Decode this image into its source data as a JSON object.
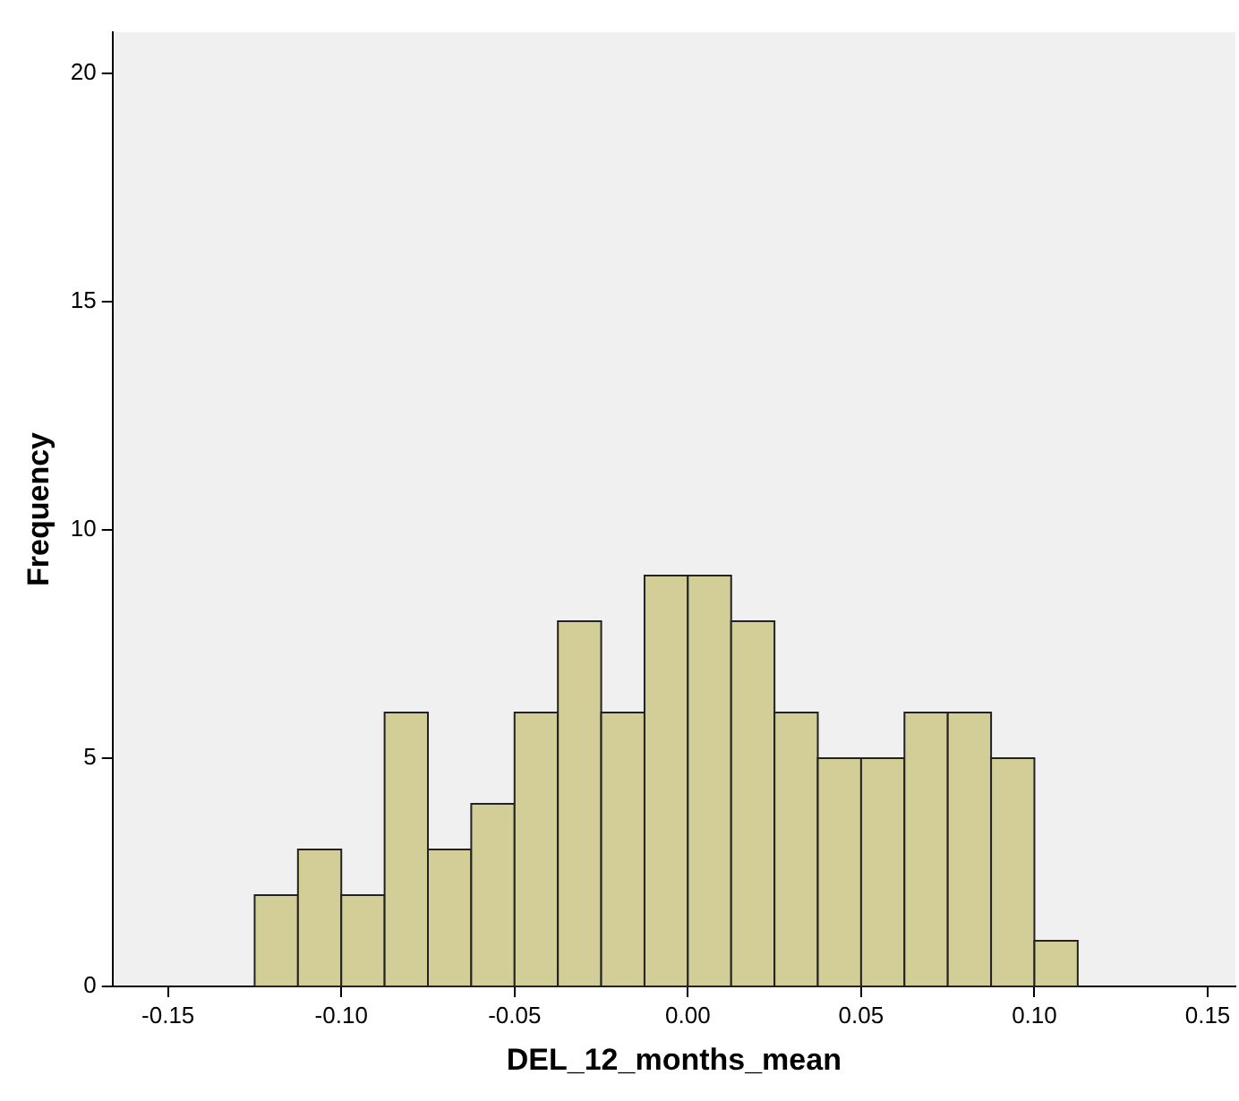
{
  "chart_data": {
    "type": "histogram",
    "xlabel": "DEL_12_months_mean",
    "ylabel": "Frequency",
    "bins": [
      -0.125,
      -0.1125,
      -0.1,
      -0.0875,
      -0.075,
      -0.0625,
      -0.05,
      -0.0375,
      -0.025,
      -0.0125,
      0,
      0.0125,
      0.025,
      0.0375,
      0.05,
      0.0625,
      0.075,
      0.0875,
      0.1,
      0.1125
    ],
    "values": [
      2,
      3,
      2,
      6,
      3,
      4,
      6,
      8,
      6,
      9,
      9,
      8,
      6,
      5,
      5,
      6,
      6,
      5,
      1
    ],
    "color": "#d3ce97",
    "xlim": [
      -0.166,
      0.158
    ],
    "xticks": [
      -0.15,
      {
        "value": -0.1,
        "label": "-0.10"
      },
      -0.05,
      {
        "value": 0,
        "label": "0.00"
      },
      0.05,
      {
        "value": 0.1,
        "label": "0.10"
      },
      0.15
    ],
    "ylim": [
      0,
      20.9
    ],
    "yticks": [
      0,
      5,
      10,
      15,
      20
    ],
    "grid": false,
    "legend": false
  }
}
